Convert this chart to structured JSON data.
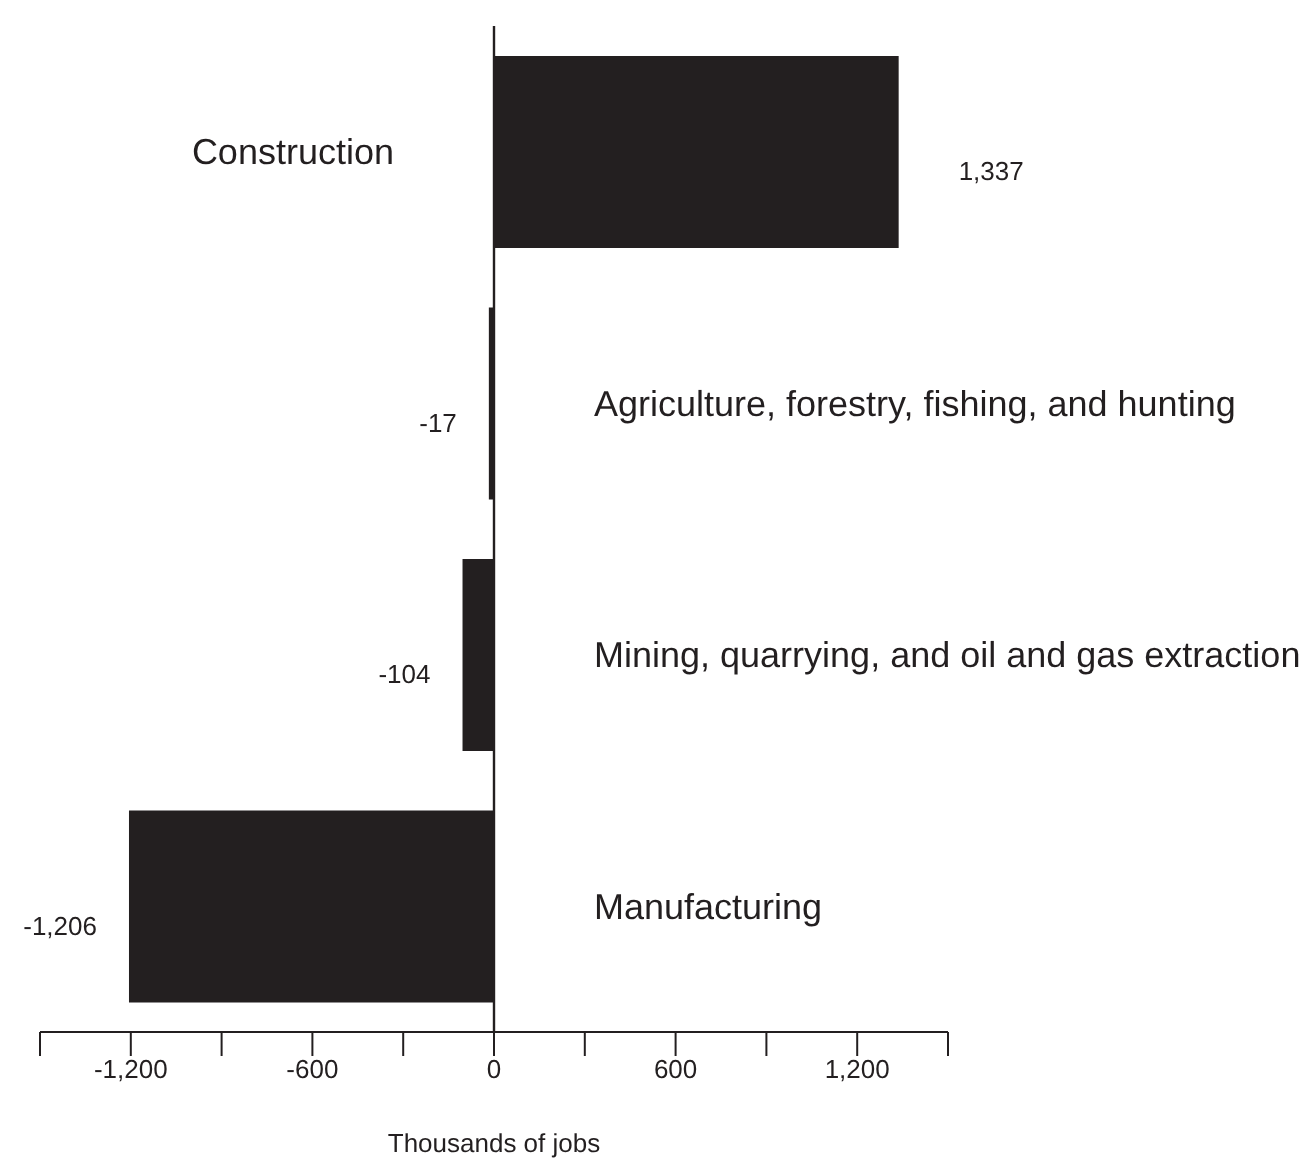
{
  "chart_data": {
    "type": "bar",
    "orientation": "horizontal",
    "xlabel": "Thousands of jobs",
    "categories": [
      "Construction",
      "Agriculture, forestry, fishing, and hunting",
      "Mining, quarrying, and oil and gas extraction",
      "Manufacturing"
    ],
    "values": [
      1337,
      -17,
      -104,
      -1206
    ],
    "color": "#231f20",
    "value_labels": [
      "1,337",
      "-17",
      "-104",
      "-1,206"
    ],
    "xlim": [
      -1500,
      1500
    ],
    "xticks": [
      {
        "value": -1500,
        "label": null
      },
      {
        "value": -1200,
        "label": "-1,200"
      },
      {
        "value": -900,
        "label": null
      },
      {
        "value": -600,
        "label": "-600"
      },
      {
        "value": -300,
        "label": null
      },
      0,
      {
        "value": 300,
        "label": null
      },
      {
        "value": 600,
        "label": "600"
      },
      {
        "value": 900,
        "label": null
      },
      {
        "value": 1200,
        "label": "1,200"
      },
      {
        "value": 1500,
        "label": null
      }
    ],
    "tick_labels": "x",
    "legend": false
  }
}
